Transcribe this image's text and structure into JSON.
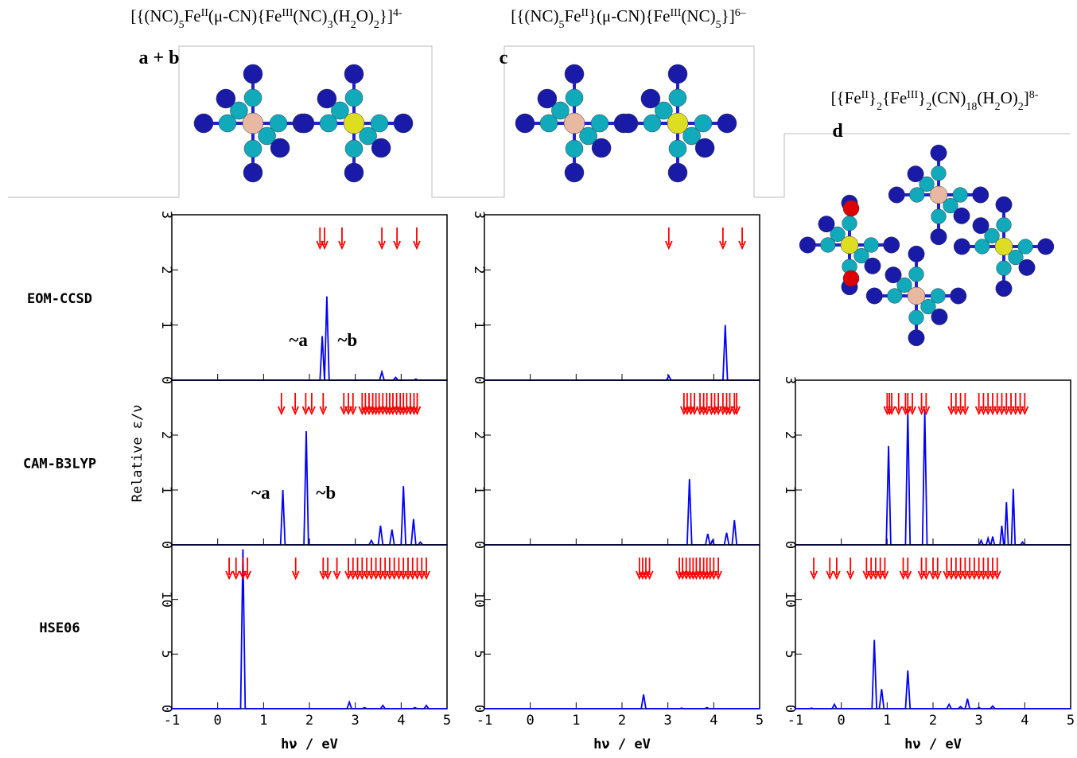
{
  "structures": [
    {
      "panel_label": "a + b",
      "title_parts": [
        {
          "text": "[{(NC)"
        },
        {
          "text": "5",
          "style": "sub"
        },
        {
          "text": "Fe"
        },
        {
          "text": "II",
          "style": "sup"
        },
        {
          "text": "(μ-CN){Fe"
        },
        {
          "text": "III",
          "style": "sup"
        },
        {
          "text": "(NC)"
        },
        {
          "text": "3",
          "style": "sub"
        },
        {
          "text": "(H"
        },
        {
          "text": "2",
          "style": "sub"
        },
        {
          "text": "O)"
        },
        {
          "text": "2",
          "style": "sub"
        },
        {
          "text": "}]"
        },
        {
          "text": "4-",
          "style": "sup"
        }
      ]
    },
    {
      "panel_label": "c",
      "title_parts": [
        {
          "text": "[{(NC)"
        },
        {
          "text": "5",
          "style": "sub"
        },
        {
          "text": "Fe"
        },
        {
          "text": "II",
          "style": "sup"
        },
        {
          "text": "}(μ-CN){Fe"
        },
        {
          "text": "III",
          "style": "sup"
        },
        {
          "text": "(NC)"
        },
        {
          "text": "5",
          "style": "sub"
        },
        {
          "text": "}]"
        },
        {
          "text": "6–",
          "style": "sup"
        }
      ]
    },
    {
      "panel_label": "d",
      "title_parts": [
        {
          "text": "[{Fe"
        },
        {
          "text": "II",
          "style": "sup"
        },
        {
          "text": "}"
        },
        {
          "text": "2",
          "style": "sub"
        },
        {
          "text": "{Fe"
        },
        {
          "text": "III",
          "style": "sup"
        },
        {
          "text": "}"
        },
        {
          "text": "2",
          "style": "sub"
        },
        {
          "text": "(CN)"
        },
        {
          "text": "18",
          "style": "sub"
        },
        {
          "text": "(H"
        },
        {
          "text": "2",
          "style": "sub"
        },
        {
          "text": "O)"
        },
        {
          "text": "2",
          "style": "sub"
        },
        {
          "text": "]"
        },
        {
          "text": "8-",
          "style": "sup"
        }
      ]
    }
  ],
  "methods": [
    "EOM-CCSD",
    "CAM-B3LYP",
    "HSE06"
  ],
  "ylabel": "Relative ε/ν",
  "chart_data": [
    {
      "type": "line",
      "xlim": [
        -1,
        5
      ],
      "xticks": [
        -1,
        0,
        1,
        2,
        3,
        4,
        5
      ],
      "ylim": [
        0,
        3
      ],
      "yticks": [
        0,
        1,
        2,
        3
      ],
      "x": [
        -1,
        2.23,
        2.28,
        2.33,
        2.38,
        2.43,
        3.53,
        3.58,
        3.63,
        3.83,
        3.88,
        3.93,
        4.27,
        4.32,
        4.37,
        5
      ],
      "series": [
        {
          "color": "#0000ff",
          "values": [
            0,
            0,
            0.8,
            0,
            1.52,
            0,
            0,
            0.15,
            0,
            0,
            0.05,
            0,
            0,
            0.02,
            0,
            0
          ]
        }
      ],
      "transitions": [
        2.23,
        2.33,
        2.71,
        3.58,
        3.91,
        4.34
      ],
      "transition_color": "#ff0000",
      "annotations": [
        {
          "text": "~a",
          "x": 1.76,
          "y": 0.62
        },
        {
          "text": "~b",
          "x": 2.83,
          "y": 0.62
        }
      ]
    },
    {
      "type": "line",
      "xlim": [
        -1,
        5
      ],
      "xticks": [
        -1,
        0,
        1,
        2,
        3,
        4,
        5
      ],
      "ylim": [
        0,
        3
      ],
      "yticks": [
        0,
        1,
        2,
        3
      ],
      "x": [
        -1,
        2.97,
        3.02,
        3.07,
        4.2,
        4.25,
        4.3,
        5
      ],
      "series": [
        {
          "color": "#0000ff",
          "values": [
            0,
            0,
            0.08,
            0,
            0,
            1.0,
            0,
            0
          ]
        }
      ],
      "transitions": [
        3.02,
        4.2,
        4.62
      ],
      "transition_color": "#ff0000"
    },
    {
      "type": "line",
      "xlim": [
        -1,
        5
      ],
      "xticks": [
        -1,
        0,
        1,
        2,
        3,
        4,
        5
      ],
      "ylim": [
        0,
        3
      ],
      "yticks": [
        0,
        1,
        2
      ],
      "x": [
        -1,
        1.37,
        1.42,
        1.47,
        1.88,
        1.93,
        1.98,
        3.3,
        3.35,
        3.4,
        3.5,
        3.55,
        3.6,
        3.75,
        3.8,
        3.85,
        4.0,
        4.05,
        4.1,
        4.22,
        4.27,
        4.32,
        4.37,
        4.42,
        4.47,
        5
      ],
      "series": [
        {
          "color": "#0000ff",
          "values": [
            0,
            0,
            1.0,
            0,
            0,
            2.07,
            0,
            0,
            0.08,
            0,
            0,
            0.35,
            0,
            0,
            0.28,
            0,
            0,
            1.07,
            0,
            0,
            0.47,
            0,
            0,
            0.05,
            0,
            0
          ]
        }
      ],
      "transitions": [
        1.39,
        1.69,
        1.92,
        2.05,
        2.3,
        2.75,
        2.85,
        2.95,
        3.15,
        3.22,
        3.3,
        3.38,
        3.45,
        3.52,
        3.6,
        3.68,
        3.75,
        3.82,
        3.9,
        3.98,
        4.05,
        4.12,
        4.2,
        4.28,
        4.35
      ],
      "transition_color": "#ff0000",
      "annotations": [
        {
          "text": "~a",
          "x": 0.94,
          "y": 0.84
        },
        {
          "text": "~b",
          "x": 2.36,
          "y": 0.84
        }
      ]
    },
    {
      "type": "line",
      "xlim": [
        -1,
        5
      ],
      "xticks": [
        -1,
        0,
        1,
        2,
        3,
        4,
        5
      ],
      "ylim": [
        0,
        3
      ],
      "yticks": [
        0,
        1,
        2
      ],
      "x": [
        -1,
        3.42,
        3.47,
        3.52,
        3.82,
        3.87,
        3.92,
        3.93,
        3.97,
        4.01,
        4.23,
        4.28,
        4.33,
        4.4,
        4.45,
        4.5,
        5
      ],
      "series": [
        {
          "color": "#0000ff",
          "values": [
            0,
            0,
            1.2,
            0,
            0,
            0.2,
            0,
            0,
            0.08,
            0,
            0,
            0.22,
            0,
            0,
            0.45,
            0,
            0
          ]
        }
      ],
      "transitions": [
        3.35,
        3.42,
        3.5,
        3.58,
        3.7,
        3.78,
        3.85,
        3.95,
        4.02,
        4.1,
        4.2,
        4.28,
        4.35,
        4.45,
        4.5
      ],
      "transition_color": "#ff0000"
    },
    {
      "type": "line",
      "xlim": [
        -1,
        5
      ],
      "xticks": [
        -1,
        0,
        1,
        2,
        3,
        4,
        5
      ],
      "ylim": [
        0,
        3
      ],
      "yticks": [
        0,
        1,
        2,
        3
      ],
      "x": [
        -1,
        0.98,
        1.03,
        1.08,
        1.4,
        1.45,
        1.5,
        1.77,
        1.82,
        1.87,
        3.01,
        3.05,
        3.09,
        3.16,
        3.2,
        3.24,
        3.26,
        3.3,
        3.34,
        3.46,
        3.5,
        3.54,
        3.56,
        3.6,
        3.64,
        3.71,
        3.75,
        3.79,
        3.91,
        3.95,
        3.99,
        5
      ],
      "series": [
        {
          "color": "#0000ff",
          "values": [
            0,
            0,
            1.8,
            0,
            0,
            2.45,
            0,
            0,
            2.45,
            0,
            0,
            0.08,
            0,
            0,
            0.12,
            0,
            0,
            0.15,
            0,
            0,
            0.35,
            0,
            0,
            0.78,
            0,
            0,
            1.02,
            0,
            0,
            0.05,
            0,
            0
          ]
        }
      ],
      "transitions": [
        1.0,
        1.05,
        1.1,
        1.25,
        1.4,
        1.45,
        1.55,
        1.75,
        1.85,
        2.4,
        2.5,
        2.6,
        2.7,
        3.0,
        3.1,
        3.2,
        3.3,
        3.4,
        3.5,
        3.6,
        3.7,
        3.8,
        3.9,
        4.0
      ],
      "transition_color": "#ff0000"
    },
    {
      "type": "line",
      "xlim": [
        -1,
        5
      ],
      "xticks": [
        -1,
        0,
        1,
        2,
        3,
        4,
        5
      ],
      "ylim": [
        0,
        15
      ],
      "yticks": [
        0,
        5,
        10
      ],
      "xlabel": "hν / eV",
      "x": [
        -1,
        0.5,
        0.55,
        0.6,
        2.82,
        2.87,
        2.92,
        3.15,
        3.2,
        3.25,
        3.55,
        3.6,
        3.65,
        4.25,
        4.3,
        4.35,
        4.5,
        4.55,
        4.6,
        5
      ],
      "series": [
        {
          "color": "#0000ff",
          "values": [
            0,
            0,
            14.6,
            0,
            0,
            0.6,
            0,
            0,
            0.1,
            0,
            0,
            0.3,
            0,
            0,
            0.1,
            0,
            0,
            0.3,
            0,
            0
          ]
        }
      ],
      "transitions": [
        0.25,
        0.4,
        0.55,
        0.65,
        1.7,
        2.3,
        2.4,
        2.6,
        2.85,
        2.95,
        3.05,
        3.15,
        3.25,
        3.35,
        3.45,
        3.55,
        3.65,
        3.75,
        3.85,
        3.95,
        4.05,
        4.15,
        4.25,
        4.35,
        4.45,
        4.55
      ],
      "transition_color": "#ff0000"
    },
    {
      "type": "line",
      "xlim": [
        -1,
        5
      ],
      "xticks": [
        -1,
        0,
        1,
        2,
        3,
        4,
        5
      ],
      "ylim": [
        0,
        15
      ],
      "yticks": [
        0,
        5,
        10
      ],
      "xlabel": "hν / eV",
      "x": [
        -1,
        2.42,
        2.47,
        2.52,
        3.25,
        3.3,
        3.35,
        3.8,
        3.85,
        3.9,
        5
      ],
      "series": [
        {
          "color": "#0000ff",
          "values": [
            0,
            0,
            1.3,
            0,
            0,
            0.05,
            0,
            0,
            0.1,
            0,
            0
          ]
        }
      ],
      "transitions": [
        2.38,
        2.45,
        2.52,
        2.6,
        3.25,
        3.32,
        3.4,
        3.48,
        3.55,
        3.62,
        3.7,
        3.78,
        3.85,
        3.92,
        4.0,
        4.1
      ],
      "transition_color": "#ff0000"
    },
    {
      "type": "line",
      "xlim": [
        -1,
        5
      ],
      "xticks": [
        -1,
        0,
        1,
        2,
        3,
        4,
        5
      ],
      "ylim": [
        0,
        15
      ],
      "yticks": [
        0,
        5,
        10
      ],
      "xlabel": "hν / eV",
      "x": [
        -1,
        -0.7,
        -0.65,
        -0.6,
        -0.2,
        -0.15,
        -0.1,
        0.67,
        0.72,
        0.77,
        0.83,
        0.88,
        0.93,
        1.4,
        1.45,
        1.5,
        2.3,
        2.35,
        2.4,
        2.55,
        2.6,
        2.65,
        2.7,
        2.75,
        2.8,
        2.95,
        3.0,
        3.05,
        3.25,
        3.3,
        3.35,
        5
      ],
      "series": [
        {
          "color": "#0000ff",
          "values": [
            0,
            0,
            0.05,
            0,
            0,
            0.4,
            0,
            0,
            6.3,
            0,
            0,
            1.8,
            0,
            0,
            3.5,
            0,
            0,
            0.4,
            0,
            0,
            0.2,
            0,
            0,
            0.9,
            0,
            0,
            0.1,
            0,
            0,
            0.25,
            0,
            0
          ]
        }
      ],
      "transitions": [
        -0.6,
        -0.25,
        -0.1,
        0.2,
        0.55,
        0.65,
        0.75,
        0.85,
        0.95,
        1.35,
        1.45,
        1.75,
        1.85,
        2.0,
        2.1,
        2.3,
        2.4,
        2.5,
        2.6,
        2.7,
        2.8,
        2.9,
        3.0,
        3.1,
        3.2,
        3.3,
        3.4
      ],
      "transition_color": "#ff0000"
    }
  ]
}
